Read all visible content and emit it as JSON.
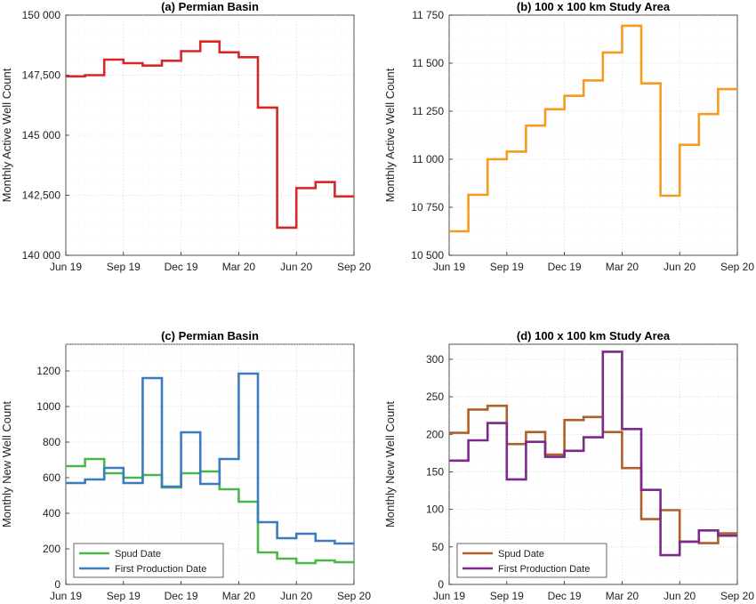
{
  "x_ticks": [
    "Jun 19",
    "Sep 19",
    "Dec 19",
    "Mar 20",
    "Jun 20",
    "Sep 20"
  ],
  "chart_data": [
    {
      "id": "a",
      "type": "line",
      "step": true,
      "title": "(a) Permian Basin",
      "ylabel": "Monthly Active Well Count",
      "ylim": [
        140000,
        150000
      ],
      "yticks": [
        140000,
        142500,
        145000,
        147500,
        150000
      ],
      "ytick_labels": [
        "140 000",
        "142,500",
        "145 000",
        "147,500",
        "150 000"
      ],
      "grid": true,
      "series": [
        {
          "color": "#d62728",
          "values": [
            147450,
            147500,
            148150,
            148000,
            147900,
            148100,
            148500,
            148900,
            148450,
            148250,
            146150,
            141150,
            142800,
            143050,
            142450
          ]
        }
      ]
    },
    {
      "id": "b",
      "type": "line",
      "step": true,
      "title": "(b) 100 x 100 km Study Area",
      "ylabel": "Monthly Active Well Count",
      "ylim": [
        10500,
        11750
      ],
      "yticks": [
        10500,
        10750,
        11000,
        11250,
        11500,
        11750
      ],
      "ytick_labels": [
        "10 500",
        "10 750",
        "11 000",
        "11 250",
        "11 500",
        "11 750"
      ],
      "grid": true,
      "series": [
        {
          "color": "#f39c1f",
          "values": [
            10625,
            10815,
            11000,
            11040,
            11175,
            11260,
            11330,
            11410,
            11555,
            11695,
            11395,
            10810,
            11075,
            11235,
            11365
          ]
        }
      ]
    },
    {
      "id": "c",
      "type": "line",
      "step": true,
      "title": "(c) Permian Basin",
      "ylabel": "Monthly New Well Count",
      "ylim": [
        0,
        1350
      ],
      "yticks": [
        0,
        200,
        400,
        600,
        800,
        1000,
        1200
      ],
      "ytick_labels": [
        "0",
        "200",
        "400",
        "600",
        "800",
        "1000",
        "1200"
      ],
      "grid": true,
      "legend": {
        "placement": "bottom-left",
        "entries": [
          "Spud Date",
          "First Production Date"
        ]
      },
      "series": [
        {
          "name": "Spud Date",
          "color": "#4cb749",
          "values": [
            665,
            705,
            625,
            600,
            615,
            545,
            625,
            635,
            535,
            465,
            180,
            145,
            120,
            135,
            125
          ]
        },
        {
          "name": "First Production Date",
          "color": "#3b7bbf",
          "values": [
            570,
            590,
            655,
            570,
            1160,
            550,
            855,
            565,
            705,
            1185,
            350,
            260,
            285,
            245,
            230
          ]
        }
      ]
    },
    {
      "id": "d",
      "type": "line",
      "step": true,
      "title": "(d) 100 x 100 km Study Area",
      "ylabel": "Monthly New Well Count",
      "ylim": [
        0,
        320
      ],
      "yticks": [
        0,
        50,
        100,
        150,
        200,
        250,
        300
      ],
      "ytick_labels": [
        "0",
        "50",
        "100",
        "150",
        "200",
        "250",
        "300"
      ],
      "grid": true,
      "legend": {
        "placement": "bottom-left",
        "entries": [
          "Spud Date",
          "First Production Date"
        ]
      },
      "series": [
        {
          "name": "Spud Date",
          "color": "#b05f28",
          "values": [
            202,
            233,
            238,
            187,
            203,
            173,
            219,
            223,
            203,
            155,
            87,
            99,
            57,
            55,
            68
          ]
        },
        {
          "name": "First Production Date",
          "color": "#7b2a8c",
          "values": [
            165,
            192,
            215,
            140,
            190,
            170,
            178,
            196,
            310,
            207,
            126,
            39,
            57,
            72,
            65
          ]
        }
      ]
    }
  ]
}
